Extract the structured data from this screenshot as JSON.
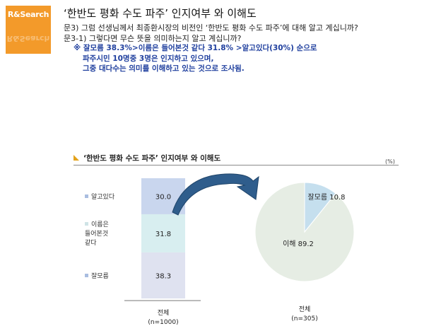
{
  "logo": {
    "text": "R&Search"
  },
  "header": {
    "title": "‘한반도 평화 수도 파주’ 인지여부 와 이해도",
    "question1": "문3) 그럼 선생님께서 최종환시장의 비전인 ‘한반도 평화 수도 파주’에 대해 알고 계십니까?",
    "question2": "문3-1) 그렇다면 무슨 뜻을 의미하는지 알고 계십니까?"
  },
  "note": {
    "line1": "※ 잘모름 38.3%>이름은 들어본것 같다 31.8% >알고있다(30%) 순으로",
    "line2": "파주시민 10명중 3명은 인지하고 있으며,",
    "line3": "그중 대다수는 의미를 이해하고 있는 것으로 조사됨."
  },
  "chart_header": {
    "title": "‘한반도 평화 수도 파주’ 인지여부 와 이해도",
    "unit": "(%)"
  },
  "chart_data": [
    {
      "type": "bar",
      "stacked": true,
      "categories": [
        "전체"
      ],
      "category_sub": "(n=1000)",
      "series": [
        {
          "name": "알고있다",
          "values": [
            30.0
          ],
          "color": "#c9d6ee"
        },
        {
          "name": "이름은 들어본것 같다",
          "legend_lines": [
            "이름은",
            "들어본것",
            "같다"
          ],
          "values": [
            31.8
          ],
          "color": "#d8eef0"
        },
        {
          "name": "잘모름",
          "values": [
            38.3
          ],
          "color": "#dfe2f0"
        }
      ],
      "legend_placement": "left"
    },
    {
      "type": "pie",
      "labels": [
        "잘모름",
        "이해"
      ],
      "values": [
        10.8,
        89.2
      ],
      "colors": [
        "#c5dfee",
        "#e6ede4"
      ],
      "category": "전체",
      "category_sub": "(n=305)"
    }
  ],
  "colors": {
    "accent": "#f39a2a",
    "note_text": "#1f3f9e",
    "arrow": "#2f5d8c"
  }
}
